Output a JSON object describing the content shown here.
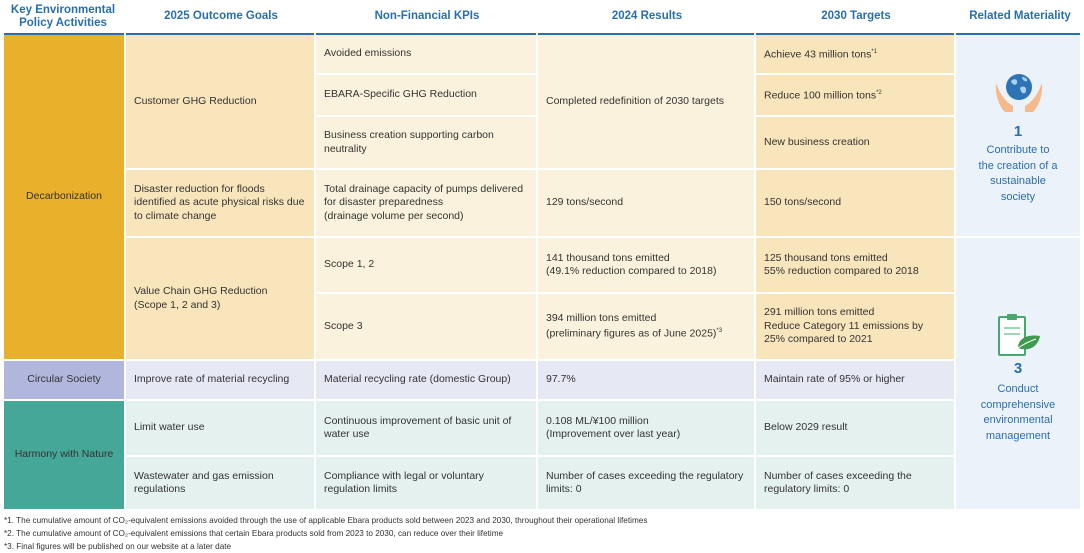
{
  "headers": {
    "activities": "Key Environmental\nPolicy Activities",
    "goals": "2025 Outcome Goals",
    "kpis": "Non-Financial KPIs",
    "results": "2024 Results",
    "targets": "2030 Targets",
    "materiality": "Related Materiality"
  },
  "activities": {
    "decarbonization": "Decarbonization",
    "circular": "Circular Society",
    "nature": "Harmony with Nature"
  },
  "goals": {
    "customer_ghg": "Customer GHG Reduction",
    "disaster": "Disaster reduction for floods identified as acute physical risks due to climate change",
    "value_chain": "Value Chain GHG Reduction\n(Scope 1, 2 and 3)",
    "recycling": "Improve rate of material recycling",
    "water": "Limit water use",
    "wastewater": "Wastewater and gas emission regulations"
  },
  "kpis": {
    "avoided": "Avoided emissions",
    "ebara_specific": "EBARA-Specific GHG Reduction",
    "business_creation": "Business creation supporting carbon neutrality",
    "drainage": "Total drainage capacity of pumps delivered for disaster preparedness\n(drainage volume per second)",
    "scope12": "Scope 1, 2",
    "scope3": "Scope 3",
    "recycling_rate": "Material recycling rate (domestic Group)",
    "water_unit": "Continuous improvement of basic unit of water use",
    "compliance": "Compliance with legal or voluntary regulation limits"
  },
  "results": {
    "redefinition": "Completed redefinition of 2030 targets",
    "drainage": "129 tons/second",
    "scope12": "141 thousand tons emitted\n(49.1% reduction compared to 2018)",
    "scope3_line1": "394 million tons emitted",
    "scope3_line2": "(preliminary figures as of June 2025)",
    "scope3_note": "*3",
    "recycling": "97.7%",
    "water": "0.108 ML/¥100 million\n(Improvement over last year)",
    "compliance": "Number of cases exceeding the regulatory limits: 0"
  },
  "targets": {
    "avoided": "Achieve 43 million tons",
    "avoided_note": "*1",
    "ebara": "Reduce 100 million tons",
    "ebara_note": "*2",
    "business": "New business creation",
    "drainage": "150 tons/second",
    "scope12": "125 thousand tons emitted\n55% reduction compared to 2018",
    "scope3": "291 million tons emitted\nReduce Category 11 emissions by 25% compared to 2021",
    "recycling": "Maintain rate of 95% or higher",
    "water": "Below 2029 result",
    "compliance": "Number of cases exceeding the regulatory limits: 0"
  },
  "materiality": {
    "m1_number": "1",
    "m1_text": "Contribute to\nthe creation of a\nsustainable\nsociety",
    "m3_number": "3",
    "m3_text": "Conduct\ncomprehensive\nenvironmental\nmanagement"
  },
  "footnotes": {
    "f1": "*1. The cumulative amount of CO₂-equivalent emissions avoided through the use of applicable Ebara products sold between 2023 and 2030, throughout their operational lifetimes",
    "f2": "*2. The cumulative amount of CO₂-equivalent emissions that certain Ebara products sold from 2023 to 2030, can reduce over their lifetime",
    "f3": "*3. Final figures will be published on our website at a later date"
  },
  "colors": {
    "accent_blue": "#2a6fad",
    "decarbonization": "#e8b02b",
    "circular": "#b1b7dc",
    "nature": "#45a798",
    "cream": "#faf2dc",
    "beige": "#f9e5bb"
  }
}
